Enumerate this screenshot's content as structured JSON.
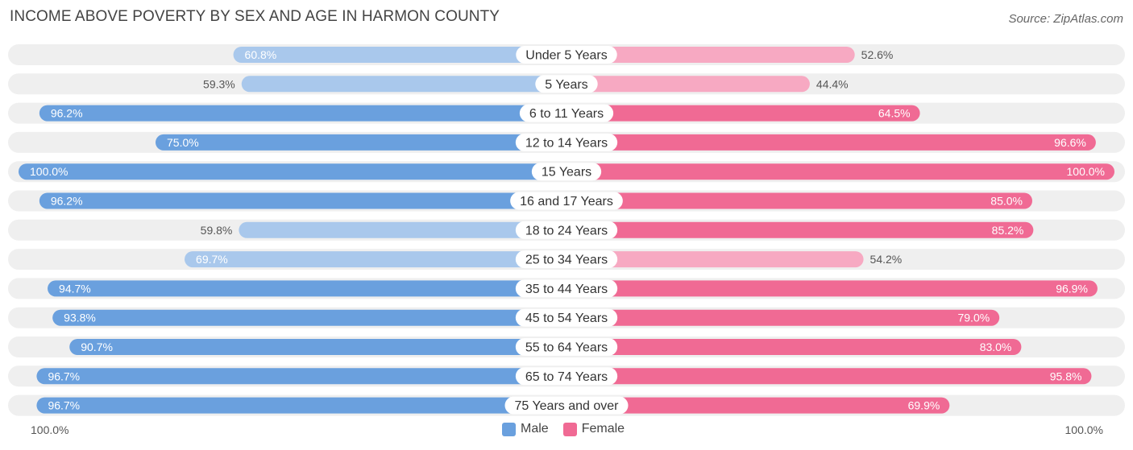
{
  "header": {
    "title": "INCOME ABOVE POVERTY BY SEX AND AGE IN HARMON COUNTY",
    "source": "Source: ZipAtlas.com"
  },
  "axis": {
    "left_label": "100.0%",
    "right_label": "100.0%"
  },
  "legend": {
    "male_label": "Male",
    "female_label": "Female"
  },
  "colors": {
    "male_strong": "#6aa0de",
    "male_light": "#a9c8ec",
    "female_strong": "#f06a94",
    "female_light": "#f7a9c2",
    "row_bg": "#efefef"
  },
  "chart_data": {
    "type": "bar",
    "orientation": "horizontal-diverging",
    "title": "INCOME ABOVE POVERTY BY SEX AND AGE IN HARMON COUNTY",
    "categories": [
      "Under 5 Years",
      "5 Years",
      "6 to 11 Years",
      "12 to 14 Years",
      "15 Years",
      "16 and 17 Years",
      "18 to 24 Years",
      "25 to 34 Years",
      "35 to 44 Years",
      "45 to 54 Years",
      "55 to 64 Years",
      "65 to 74 Years",
      "75 Years and over"
    ],
    "series": [
      {
        "name": "Male",
        "values": [
          60.8,
          59.3,
          96.2,
          75.0,
          100.0,
          96.2,
          59.8,
          69.7,
          94.7,
          93.8,
          90.7,
          96.7,
          96.7
        ],
        "labels": [
          "60.8%",
          "59.3%",
          "96.2%",
          "75.0%",
          "100.0%",
          "96.2%",
          "59.8%",
          "69.7%",
          "94.7%",
          "93.8%",
          "90.7%",
          "96.7%",
          "96.7%"
        ]
      },
      {
        "name": "Female",
        "values": [
          52.6,
          44.4,
          64.5,
          96.6,
          100.0,
          85.0,
          85.2,
          54.2,
          96.9,
          79.0,
          83.0,
          95.8,
          69.9
        ],
        "labels": [
          "52.6%",
          "44.4%",
          "64.5%",
          "96.6%",
          "100.0%",
          "85.0%",
          "85.2%",
          "54.2%",
          "96.9%",
          "79.0%",
          "83.0%",
          "95.8%",
          "69.9%"
        ]
      }
    ],
    "xlim": [
      0,
      100
    ],
    "legend_position": "bottom-center"
  }
}
